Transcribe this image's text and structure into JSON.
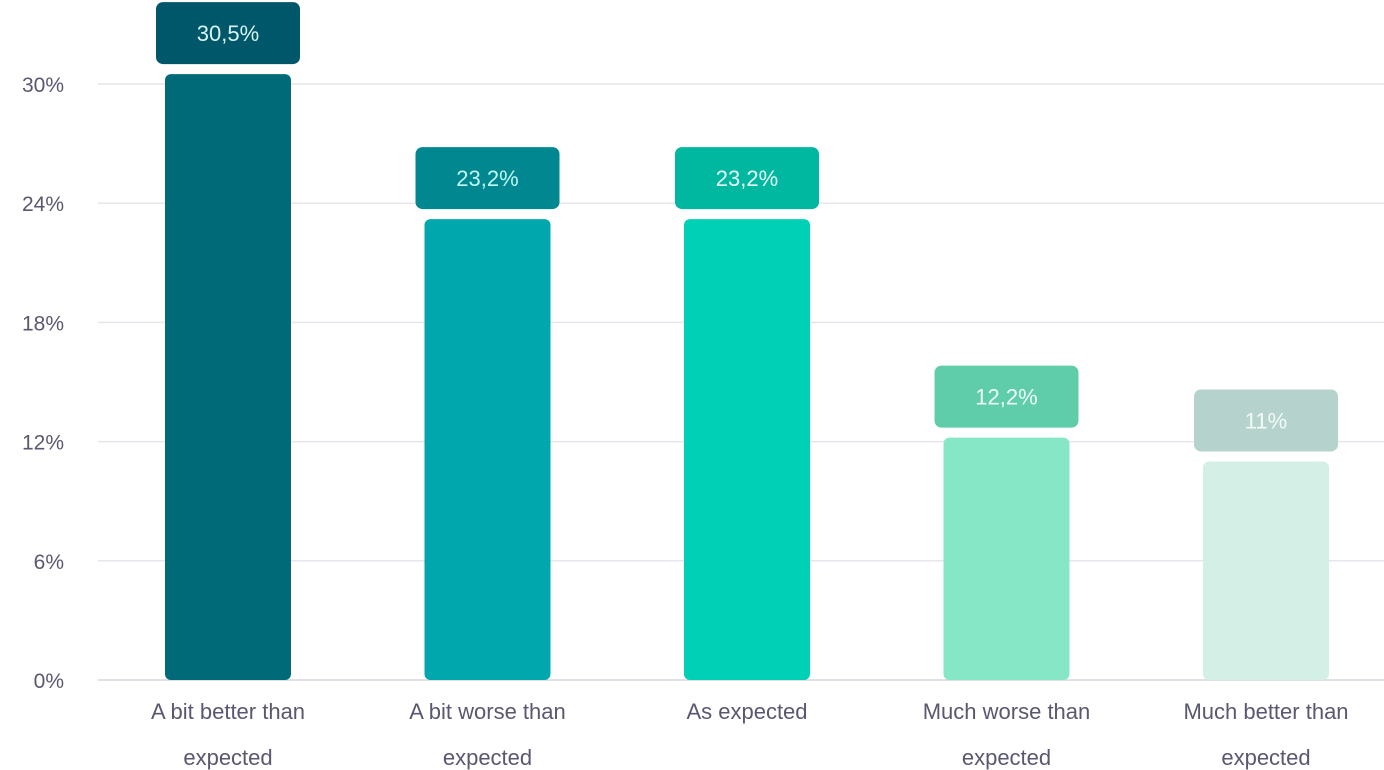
{
  "chart_data": {
    "type": "bar",
    "title": "",
    "xlabel": "",
    "ylabel": "",
    "ylim": [
      0,
      30
    ],
    "yticks": [
      "0%",
      "6%",
      "12%",
      "18%",
      "24%",
      "30%"
    ],
    "ytick_values": [
      0,
      6,
      12,
      18,
      24,
      30
    ],
    "grid": true,
    "categories": [
      [
        "A bit better than",
        "expected"
      ],
      [
        "A bit worse than",
        "expected"
      ],
      [
        "As expected"
      ],
      [
        "Much worse than",
        "expected"
      ],
      [
        "Much better than",
        "expected"
      ]
    ],
    "values": [
      30.5,
      23.2,
      23.2,
      12.2,
      11
    ],
    "data_labels": [
      "30,5%",
      "23,2%",
      "23,2%",
      "12,2%",
      "11%"
    ],
    "bar_colors": [
      "#006a78",
      "#00a7ac",
      "#00d1b6",
      "#86e7c7",
      "#d4efe6"
    ],
    "badge_colors": [
      "#00576a",
      "#00878f",
      "#00b79f",
      "#5fcdaa",
      "#b5d3cc"
    ],
    "badge_text_colors": [
      "#d7f4f2",
      "#bff8f4",
      "#e8fffa",
      "#eefcf6",
      "#f2fbf8"
    ]
  }
}
